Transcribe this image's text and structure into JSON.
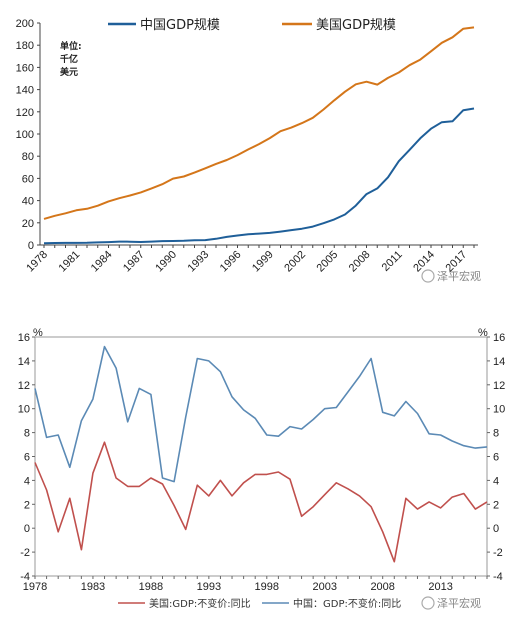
{
  "chart_data": [
    {
      "type": "line",
      "title": "",
      "unit_label": [
        "单位:",
        "千亿",
        "美元"
      ],
      "ylim": [
        0,
        200
      ],
      "yticks": [
        0,
        20,
        40,
        60,
        80,
        100,
        120,
        140,
        160,
        180,
        200
      ],
      "x": [
        1978,
        1979,
        1980,
        1981,
        1982,
        1983,
        1984,
        1985,
        1986,
        1987,
        1988,
        1989,
        1990,
        1991,
        1992,
        1993,
        1994,
        1995,
        1996,
        1997,
        1998,
        1999,
        2000,
        2001,
        2002,
        2003,
        2004,
        2005,
        2006,
        2007,
        2008,
        2009,
        2010,
        2011,
        2012,
        2013,
        2014,
        2015,
        2016,
        2017,
        2018
      ],
      "xtick_labels": [
        "1978",
        "1981",
        "1984",
        "1987",
        "1990",
        "1993",
        "1996",
        "1999",
        "2002",
        "2005",
        "2008",
        "2011",
        "2014",
        "2017"
      ],
      "grid": false,
      "legend_position": "top",
      "series": [
        {
          "name": "中国GDP规模",
          "color": "#1f5f99",
          "values": [
            1.5,
            1.8,
            1.9,
            1.9,
            2.0,
            2.3,
            2.6,
            3.1,
            3.0,
            2.7,
            3.1,
            3.5,
            3.6,
            3.8,
            4.3,
            4.4,
            5.6,
            7.3,
            8.6,
            9.6,
            10.3,
            10.9,
            12.1,
            13.4,
            14.7,
            16.6,
            19.6,
            23.1,
            27.5,
            35.5,
            45.9,
            51.0,
            61.0,
            75.5,
            85.7,
            96.1,
            104.8,
            110.6,
            111.4,
            121.4,
            123.0
          ]
        },
        {
          "name": "美国GDP规模",
          "color": "#d4761a",
          "values": [
            23.5,
            26.3,
            28.6,
            31.3,
            32.6,
            35.4,
            39.3,
            42.2,
            44.6,
            47.4,
            51.0,
            54.8,
            59.8,
            61.7,
            65.2,
            69.1,
            73.1,
            76.6,
            81.0,
            86.1,
            90.9,
            96.3,
            102.5,
            105.8,
            109.8,
            114.6,
            122.1,
            130.4,
            138.1,
            144.8,
            147.1,
            144.5,
            150.5,
            155.4,
            162.0,
            167.0,
            174.5,
            182.2,
            187.1,
            194.9,
            196.0
          ]
        }
      ]
    },
    {
      "type": "line",
      "title": "",
      "left_axis_label": "%",
      "right_axis_label": "%",
      "ylim": [
        -4,
        16
      ],
      "yticks": [
        -4,
        -2,
        0,
        2,
        4,
        6,
        8,
        10,
        12,
        14,
        16
      ],
      "x": [
        1978,
        1979,
        1980,
        1981,
        1982,
        1983,
        1984,
        1985,
        1986,
        1987,
        1988,
        1989,
        1990,
        1991,
        1992,
        1993,
        1994,
        1995,
        1996,
        1997,
        1998,
        1999,
        2000,
        2001,
        2002,
        2003,
        2004,
        2005,
        2006,
        2007,
        2008,
        2009,
        2010,
        2011,
        2012,
        2013,
        2014,
        2015,
        2016,
        2017
      ],
      "xtick_labels": [
        "1978",
        "1983",
        "1988",
        "1993",
        "1998",
        "2003",
        "2008",
        "2013"
      ],
      "grid": false,
      "legend_position": "bottom",
      "series": [
        {
          "name": "美国:GDP:不变价:同比",
          "color": "#c0504d",
          "values": [
            5.5,
            3.2,
            -0.3,
            2.5,
            -1.8,
            4.6,
            7.2,
            4.2,
            3.5,
            3.5,
            4.2,
            3.7,
            1.9,
            -0.1,
            3.6,
            2.7,
            4.0,
            2.7,
            3.8,
            4.5,
            4.5,
            4.7,
            4.1,
            1.0,
            1.8,
            2.8,
            3.8,
            3.3,
            2.7,
            1.8,
            -0.3,
            -2.8,
            2.5,
            1.6,
            2.2,
            1.7,
            2.6,
            2.9,
            1.6,
            2.2
          ]
        },
        {
          "name": "中国：GDP:不变价:同比",
          "color": "#5b8ab5",
          "values": [
            11.7,
            7.6,
            7.8,
            5.1,
            9.0,
            10.8,
            15.2,
            13.4,
            8.9,
            11.7,
            11.2,
            4.2,
            3.9,
            9.3,
            14.2,
            14.0,
            13.1,
            11.0,
            9.9,
            9.2,
            7.8,
            7.7,
            8.5,
            8.3,
            9.1,
            10.0,
            10.1,
            11.4,
            12.7,
            14.2,
            9.7,
            9.4,
            10.6,
            9.6,
            7.9,
            7.8,
            7.3,
            6.9,
            6.7,
            6.8
          ]
        }
      ]
    }
  ],
  "watermark": "泽平宏观"
}
